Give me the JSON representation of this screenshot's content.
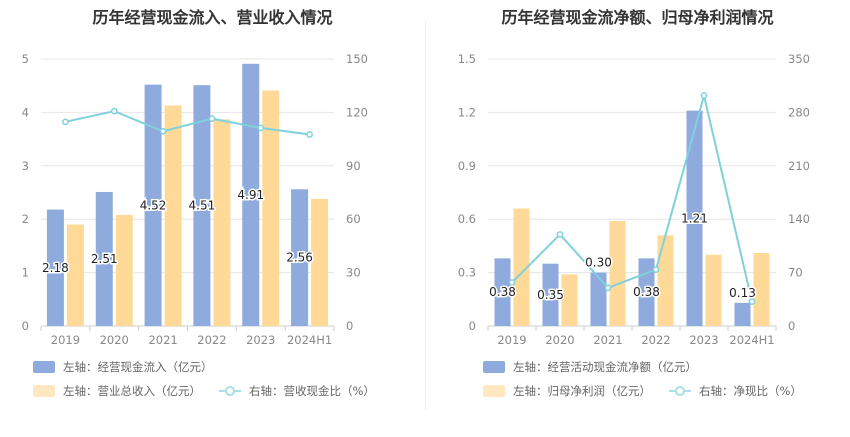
{
  "chart_data": [
    {
      "type": "bar",
      "title": "历年经营现金流入、营业收入情况",
      "categories": [
        "2019",
        "2020",
        "2021",
        "2022",
        "2023",
        "2024H1"
      ],
      "y_left": {
        "ticks": [
          "0",
          "1",
          "2",
          "3",
          "4",
          "5"
        ],
        "ylim": [
          0,
          5
        ]
      },
      "y_right": {
        "ticks": [
          "0",
          "30",
          "60",
          "90",
          "120",
          "150"
        ],
        "ylim": [
          0,
          150
        ]
      },
      "series": [
        {
          "name": "左轴：经营现金流入（亿元）",
          "kind": "bar",
          "axis": "left",
          "color": "#8faadc",
          "values": [
            2.18,
            2.51,
            4.52,
            4.51,
            4.91,
            2.56
          ],
          "labels": [
            "2.18",
            "2.51",
            "4.52",
            "4.51",
            "4.91",
            "2.56"
          ]
        },
        {
          "name": "左轴：营业总收入（亿元）",
          "kind": "bar",
          "axis": "left",
          "color": "#ffd998",
          "values": [
            1.9,
            2.08,
            4.13,
            3.87,
            4.41,
            2.38
          ]
        },
        {
          "name": "右轴：营收现金比（%）",
          "kind": "line",
          "axis": "right",
          "color": "#7fd1dc",
          "values": [
            114.7,
            120.7,
            109.4,
            116.5,
            111.3,
            107.6
          ]
        }
      ],
      "grid": true,
      "legend_position": "bottom"
    },
    {
      "type": "bar",
      "title": "历年经营现金流净额、归母净利润情况",
      "categories": [
        "2019",
        "2020",
        "2021",
        "2022",
        "2023",
        "2024H1"
      ],
      "y_left": {
        "ticks": [
          "0",
          "0.3",
          "0.6",
          "0.9",
          "1.2",
          "1.5"
        ],
        "ylim": [
          0,
          1.5
        ]
      },
      "y_right": {
        "ticks": [
          "0",
          "70",
          "140",
          "210",
          "280",
          "350"
        ],
        "ylim": [
          0,
          350
        ]
      },
      "series": [
        {
          "name": "左轴：经营活动现金流净额（亿元）",
          "kind": "bar",
          "axis": "left",
          "color": "#8faadc",
          "values": [
            0.38,
            0.35,
            0.3,
            0.38,
            1.21,
            0.13
          ],
          "labels": [
            "0.38",
            "0.35",
            "0.30",
            "0.38",
            "1.21",
            "0.13"
          ]
        },
        {
          "name": "左轴：归母净利润（亿元）",
          "kind": "bar",
          "axis": "left",
          "color": "#ffd998",
          "values": [
            0.66,
            0.29,
            0.59,
            0.51,
            0.4,
            0.41
          ]
        },
        {
          "name": "右轴：净现比（%）",
          "kind": "line",
          "axis": "right",
          "color": "#7fd1dc",
          "values": [
            57,
            120,
            50,
            74,
            302,
            32
          ]
        }
      ],
      "grid": true,
      "legend_position": "bottom"
    }
  ]
}
